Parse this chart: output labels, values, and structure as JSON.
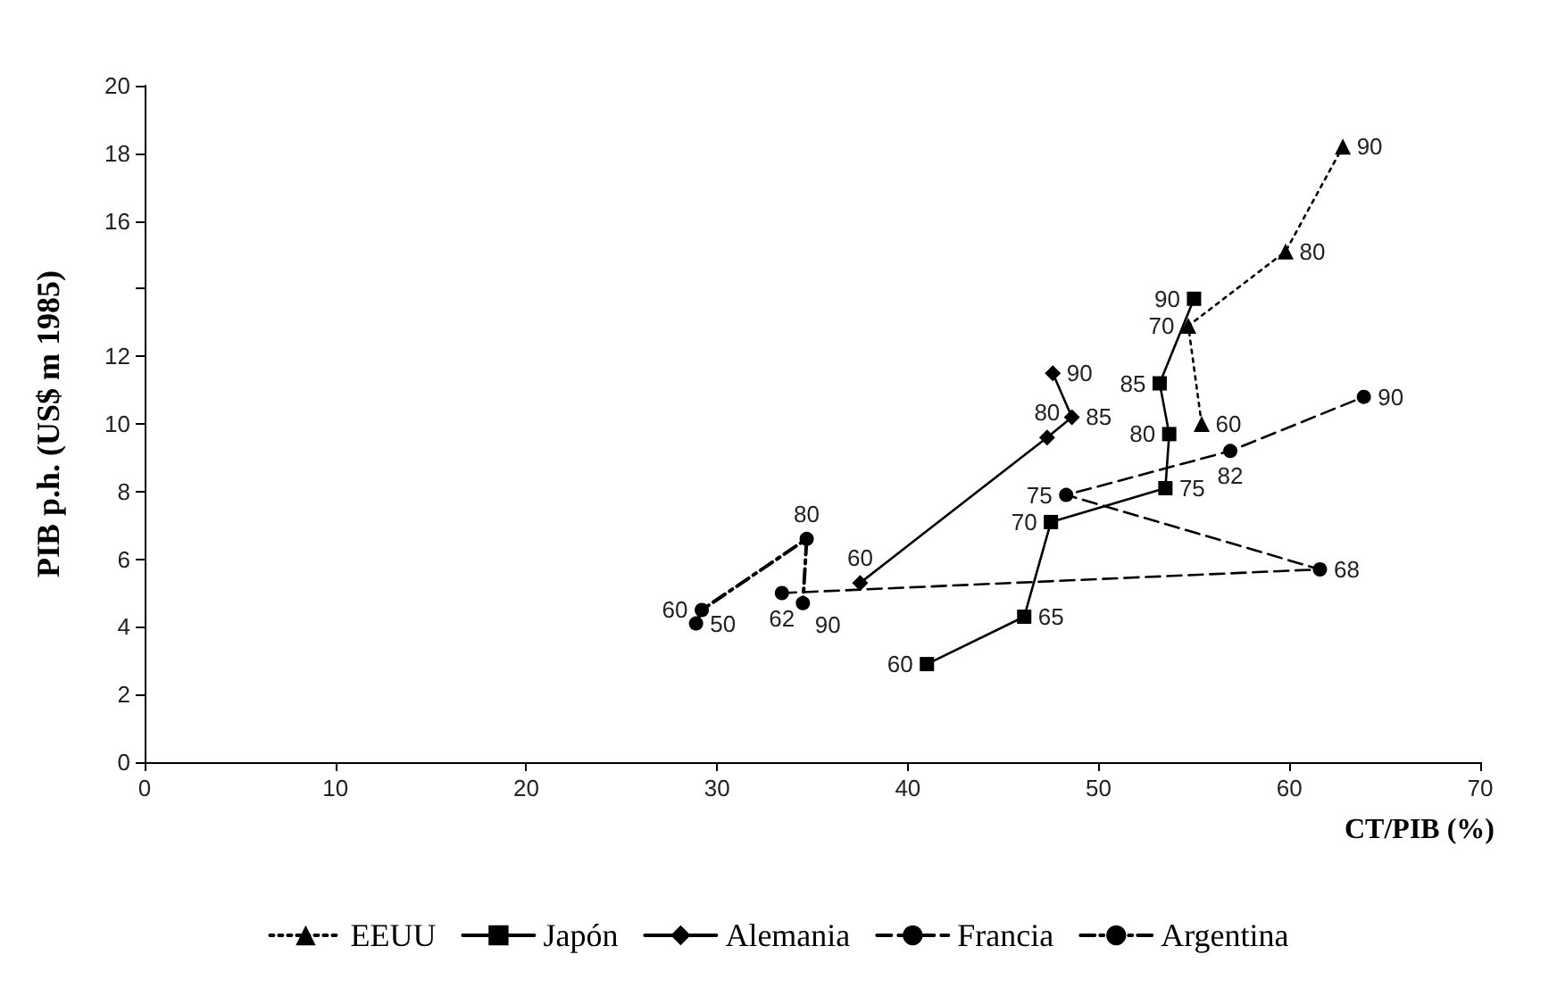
{
  "chart_data": {
    "type": "line",
    "xlabel": "CT/PIB (%)",
    "ylabel": "PIB p.h. (US$ m 1985)",
    "xlim": [
      0,
      70
    ],
    "xticks": [
      0,
      10,
      20,
      30,
      40,
      50,
      60,
      70
    ],
    "ylim": [
      0,
      20
    ],
    "yticks": [
      0,
      2,
      4,
      6,
      8,
      10,
      12,
      {
        "value": 14,
        "label": null
      },
      16,
      18,
      20
    ],
    "grid": false,
    "legend": "bottom",
    "series": [
      {
        "name": "EEUU",
        "color": "#000000",
        "marker": "triangle",
        "line_style": "dotted",
        "x": [
          55.4,
          54.7,
          59.8,
          62.8
        ],
        "values": [
          10.0,
          12.9,
          15.1,
          18.2
        ]
      },
      {
        "name": "Japón",
        "color": "#000000",
        "marker": "square",
        "line_style": "solid",
        "x": [
          41.0,
          46.1,
          47.5,
          53.5,
          53.7,
          53.2,
          55.0
        ],
        "values": [
          2.9,
          4.3,
          7.1,
          8.1,
          9.7,
          11.2,
          13.7
        ]
      },
      {
        "name": "Alemania",
        "color": "#000000",
        "marker": "diamond",
        "line_style": "solid",
        "x": [
          37.5,
          47.3,
          48.6,
          47.6
        ],
        "values": [
          5.3,
          9.6,
          10.2,
          11.5
        ]
      },
      {
        "name": "Francia",
        "color": "#000000",
        "marker": "circle",
        "line_style": "dashed",
        "x": [
          33.4,
          61.6,
          48.3,
          56.9,
          63.9
        ],
        "values": [
          5.0,
          5.7,
          7.9,
          9.2,
          10.8
        ]
      },
      {
        "name": "Argentina",
        "color": "#000000",
        "marker": "circle",
        "line_style": "dashdot",
        "x": [
          28.9,
          29.2,
          34.7,
          34.5
        ],
        "values": [
          4.1,
          4.5,
          6.6,
          4.7
        ]
      }
    ],
    "annotations": [
      {
        "text": "60",
        "x": 55.4,
        "y": 10.0
      },
      {
        "text": "70",
        "x": 54.7,
        "y": 12.9
      },
      {
        "text": "80",
        "x": 59.8,
        "y": 15.1
      },
      {
        "text": "90",
        "x": 62.8,
        "y": 18.2
      },
      {
        "text": "60",
        "x": 41.0,
        "y": 2.9
      },
      {
        "text": "65",
        "x": 46.1,
        "y": 4.3
      },
      {
        "text": "70",
        "x": 47.5,
        "y": 7.1
      },
      {
        "text": "75",
        "x": 53.5,
        "y": 8.1
      },
      {
        "text": "80",
        "x": 53.7,
        "y": 9.7
      },
      {
        "text": "85",
        "x": 53.2,
        "y": 11.2
      },
      {
        "text": "90",
        "x": 55.0,
        "y": 13.7
      },
      {
        "text": "60",
        "x": 37.5,
        "y": 5.3
      },
      {
        "text": "80",
        "x": 47.3,
        "y": 9.6
      },
      {
        "text": "85",
        "x": 48.6,
        "y": 10.2
      },
      {
        "text": "90",
        "x": 47.6,
        "y": 11.5
      },
      {
        "text": "62",
        "x": 33.4,
        "y": 5.0
      },
      {
        "text": "68",
        "x": 61.6,
        "y": 5.7
      },
      {
        "text": "75",
        "x": 48.3,
        "y": 7.9
      },
      {
        "text": "82",
        "x": 56.9,
        "y": 9.2
      },
      {
        "text": "90",
        "x": 63.9,
        "y": 10.8
      },
      {
        "text": "50",
        "x": 28.9,
        "y": 4.1
      },
      {
        "text": "60",
        "x": 29.2,
        "y": 4.5
      },
      {
        "text": "80",
        "x": 34.7,
        "y": 6.6
      },
      {
        "text": "90",
        "x": 34.5,
        "y": 4.7
      }
    ]
  }
}
